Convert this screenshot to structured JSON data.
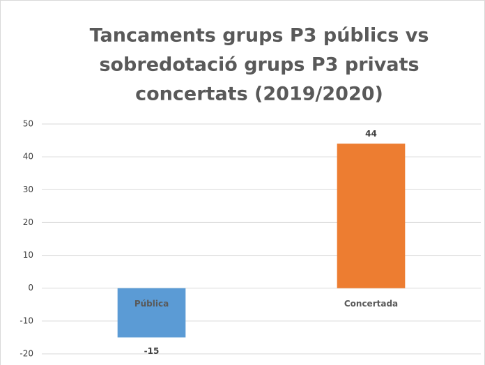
{
  "chart_data": {
    "type": "bar",
    "title": [
      "Tancaments grups P3 públics vs",
      "sobredotació grups P3 privats",
      "concertats (2019/2020)"
    ],
    "categories": [
      "Pública",
      "Concertada"
    ],
    "values": [
      -15,
      44
    ],
    "colors": [
      "#5b9bd5",
      "#ed7d31"
    ],
    "ylim": [
      -20,
      50
    ],
    "yticks": [
      -20,
      -10,
      0,
      10,
      20,
      30,
      40,
      50
    ],
    "grid": true
  }
}
